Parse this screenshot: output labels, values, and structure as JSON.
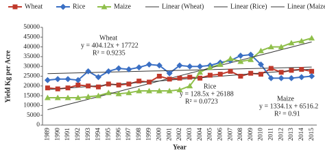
{
  "chart_data": {
    "type": "line",
    "x_label": "Year",
    "y_label": "Yield Kg per Acre",
    "categories": [
      "1989",
      "1990",
      "1991",
      "1992",
      "1993",
      "1994",
      "1995",
      "1996",
      "1997",
      "1998",
      "1999",
      "2000",
      "2001",
      "2002",
      "2003",
      "2004",
      "2005",
      "2006",
      "2007",
      "2008",
      "2009",
      "2010",
      "2011",
      "2012",
      "2013",
      "2014",
      "2015"
    ],
    "ylim": [
      0,
      50000
    ],
    "yticks": [
      0,
      5000,
      10000,
      15000,
      20000,
      25000,
      30000,
      35000,
      40000,
      45000,
      50000
    ],
    "grid": false,
    "legend": "top",
    "series": [
      {
        "name": "Wheat",
        "color": "#c0392b",
        "marker": "square",
        "values": [
          19000,
          18500,
          19000,
          20500,
          20000,
          19500,
          21000,
          20500,
          21000,
          22500,
          22000,
          25000,
          23500,
          24000,
          24500,
          24000,
          25500,
          26000,
          27500,
          25000,
          26500,
          26000,
          29000,
          27000,
          28000,
          28500,
          27500
        ]
      },
      {
        "name": "Rice",
        "color": "#3a6fc4",
        "marker": "diamond",
        "values": [
          23000,
          23500,
          23500,
          23000,
          27500,
          24500,
          27500,
          29000,
          28500,
          29500,
          31000,
          30500,
          26500,
          30500,
          30000,
          30000,
          30500,
          32000,
          33000,
          35500,
          36000,
          31000,
          24000,
          24000,
          24000,
          24500,
          25000
        ]
      },
      {
        "name": "Maize",
        "color": "#8fbf4a",
        "marker": "triangle",
        "values": [
          14000,
          14000,
          14000,
          14000,
          14500,
          15000,
          16500,
          16000,
          16500,
          17500,
          17500,
          17500,
          17500,
          18000,
          20000,
          27000,
          29500,
          31000,
          34000,
          32500,
          33500,
          38000,
          40000,
          40000,
          42000,
          43000,
          44500
        ]
      },
      {
        "name": "Linear (Wheat)",
        "color": "#333333",
        "marker": null,
        "values": [
          18126,
          18530,
          18934,
          19338,
          19743,
          20147,
          20551,
          20955,
          21359,
          21763,
          22167,
          22571,
          22976,
          23380,
          23784,
          24188,
          24592,
          24996,
          25400,
          25804,
          26209,
          26613,
          27017,
          27421,
          27825,
          28229,
          28633
        ]
      },
      {
        "name": "Linear (Rice)",
        "color": "#333333",
        "marker": null,
        "values": [
          26317,
          26445,
          26574,
          26702,
          26831,
          26959,
          27088,
          27216,
          27345,
          27473,
          27602,
          27730,
          27859,
          27987,
          28116,
          28244,
          28373,
          28501,
          28630,
          28758,
          28887,
          29015,
          29144,
          29272,
          29401,
          29529,
          29658
        ]
      },
      {
        "name": "Linear (Maize)",
        "color": "#333333",
        "marker": null,
        "values": [
          7850,
          9185,
          10519,
          11853,
          13187,
          14521,
          15855,
          17189,
          18523,
          19857,
          21192,
          22526,
          23860,
          25194,
          26528,
          27862,
          29196,
          30530,
          31864,
          33198,
          34533,
          35867,
          37201,
          38535,
          39869,
          41203,
          42537
        ]
      }
    ],
    "annotations": [
      "Wheat",
      "y = 404.12x + 17722",
      "R² = 0.9235",
      "Rice",
      "y = 128.5x + 26188",
      "R² = 0.0723",
      "Maize",
      "y = 1334.1x + 6516.2",
      "R² = 0.91"
    ]
  }
}
